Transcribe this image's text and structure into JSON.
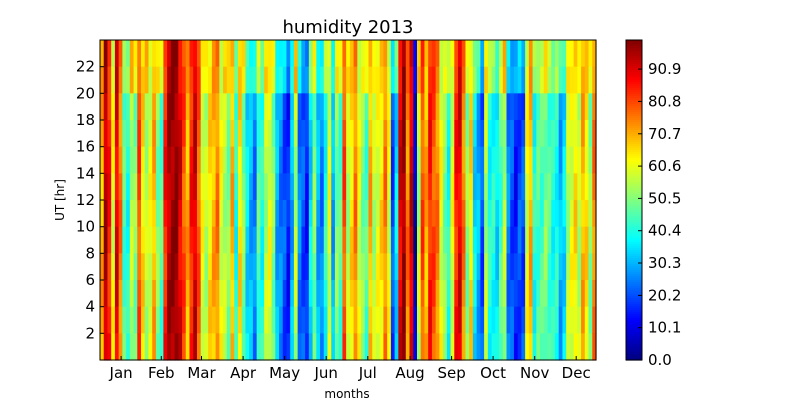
{
  "chart_data": {
    "type": "heatmap",
    "title": "humidity 2013",
    "xlabel": "months",
    "ylabel": "UT [hr]",
    "x_tick_labels": [
      "Jan",
      "Feb",
      "Mar",
      "Apr",
      "May",
      "Jun",
      "Jul",
      "Aug",
      "Sep",
      "Oct",
      "Nov",
      "Dec"
    ],
    "y_tick_labels": [
      "2",
      "4",
      "6",
      "8",
      "10",
      "12",
      "14",
      "16",
      "18",
      "20",
      "22"
    ],
    "y_ticks": [
      2,
      4,
      6,
      8,
      10,
      12,
      14,
      16,
      18,
      20,
      22
    ],
    "ylim": [
      0,
      24
    ],
    "x_range_days": [
      1,
      365
    ],
    "colorbar": {
      "label_values": [
        "0.0",
        "10.1",
        "20.2",
        "30.3",
        "40.4",
        "50.5",
        "60.6",
        "70.7",
        "80.8",
        "90.9"
      ],
      "range": [
        0,
        100
      ],
      "colormap": "jet"
    },
    "daily_mean_humidity": [
      70,
      95,
      85,
      60,
      90,
      75,
      45,
      40,
      55,
      50,
      80,
      65,
      55,
      60,
      70,
      50,
      45,
      85,
      95,
      98,
      99,
      90,
      80,
      70,
      85,
      92,
      78,
      60,
      55,
      65,
      70,
      75,
      60,
      55,
      50,
      70,
      40,
      65,
      50,
      35,
      30,
      25,
      45,
      40,
      55,
      60,
      50,
      30,
      25,
      20,
      15,
      30,
      55,
      25,
      20,
      15,
      35,
      50,
      30,
      25,
      40,
      60,
      30,
      50,
      45,
      80,
      55,
      65,
      75,
      60,
      50,
      45,
      70,
      55,
      60,
      65,
      75,
      60,
      20,
      35,
      90,
      98,
      75,
      92,
      5,
      55,
      80,
      70,
      85,
      80,
      75,
      60,
      50,
      40,
      60,
      85,
      90,
      75,
      50,
      65,
      35,
      30,
      20,
      55,
      40,
      40,
      35,
      45,
      55,
      25,
      20,
      15,
      20,
      20,
      60,
      70,
      40,
      45,
      45,
      50,
      45,
      40,
      40,
      30,
      35,
      55,
      60,
      65,
      55,
      70,
      65,
      50,
      75
    ]
  }
}
